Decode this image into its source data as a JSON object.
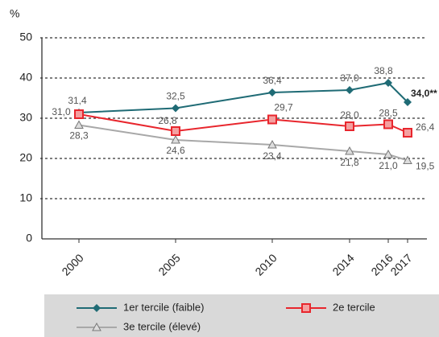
{
  "chart_data": {
    "type": "line",
    "y_label": "%",
    "x": [
      2000,
      2005,
      2010,
      2014,
      2016,
      2017
    ],
    "xlim": [
      1998,
      2018
    ],
    "xticks": [
      2000,
      2005,
      2010,
      2014,
      2016,
      2017
    ],
    "ylim": [
      0,
      50
    ],
    "yticks": [
      0,
      10,
      20,
      30,
      40,
      50
    ],
    "grid": true,
    "series": [
      {
        "name": "1er tercile (faible)",
        "color": "#1f6b75",
        "marker": "diamond",
        "values": [
          31.4,
          32.5,
          36.4,
          37.0,
          38.8,
          34.0
        ],
        "value_labels": [
          "31,4",
          "32,5",
          "36,4",
          "37,0",
          "38,8",
          "34,0**"
        ]
      },
      {
        "name": "2e tercile",
        "color": "#e8262d",
        "marker": "square",
        "values": [
          31.0,
          26.8,
          29.7,
          28.0,
          28.5,
          26.4
        ],
        "value_labels": [
          "31,0",
          "26,8",
          "29,7",
          "28,0",
          "28,5",
          "26,4"
        ]
      },
      {
        "name": "3e tercile (élevé)",
        "color": "#a8a8a8",
        "marker": "triangle",
        "values": [
          28.3,
          24.6,
          23.4,
          21.8,
          21.0,
          19.5
        ],
        "value_labels": [
          "28,3",
          "24,6",
          "23,4",
          "21,8",
          "21,0",
          "19,5"
        ]
      }
    ]
  }
}
